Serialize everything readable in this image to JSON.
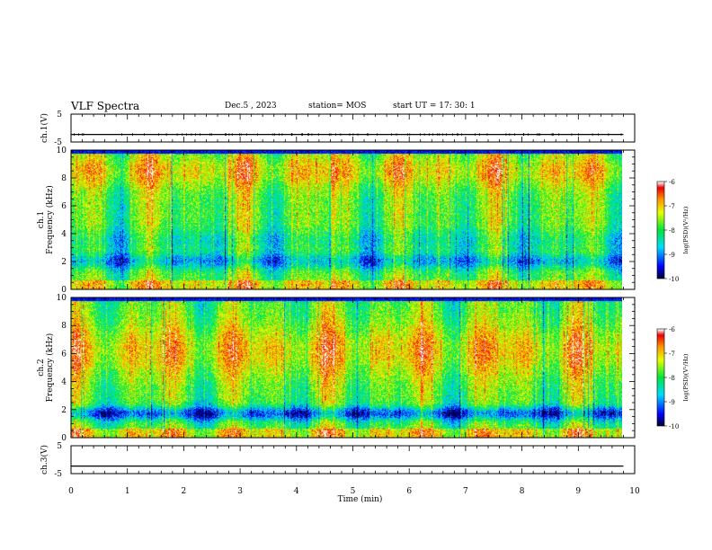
{
  "header": {
    "title": "VLF Spectra",
    "date": "Dec.5 , 2023",
    "station": "station= MOS",
    "start": "start UT = 17: 30: 1"
  },
  "chart_data": [
    {
      "type": "line",
      "panel": "ch1-voltage",
      "ylabel": "ch.1(V)",
      "ylim": [
        -5,
        5
      ],
      "yticks": [
        "5",
        "-5"
      ],
      "x": [
        0,
        9.8
      ],
      "values": [
        -2.3,
        -2.3
      ]
    },
    {
      "type": "heatmap",
      "panel": "ch1-spectrogram",
      "ylabel_line1": "ch.1",
      "ylabel_line2": "Frequency (kHz)",
      "ylim": [
        0,
        10
      ],
      "yticks": [
        "0",
        "2",
        "4",
        "6",
        "8",
        "10"
      ],
      "xlim": [
        0,
        9.8
      ],
      "colorbar": {
        "label": "log(PSD)(V²/Hz)",
        "range": [
          -10,
          -6
        ],
        "ticks": [
          "-6",
          "-7",
          "-8",
          "-9",
          "-10"
        ],
        "colors": [
          "#ffffff",
          "#ff0000",
          "#ffa500",
          "#ffff00",
          "#00ff00",
          "#00ffff",
          "#0000ff",
          "#000040"
        ]
      }
    },
    {
      "type": "heatmap",
      "panel": "ch2-spectrogram",
      "ylabel_line1": "ch.2",
      "ylabel_line2": "Frequency (kHz)",
      "ylim": [
        0,
        10
      ],
      "yticks": [
        "0",
        "2",
        "4",
        "6",
        "8",
        "10"
      ],
      "xlim": [
        0,
        9.8
      ],
      "colorbar": {
        "label": "log(PSD)(V²/Hz)",
        "range": [
          -10,
          -6
        ],
        "ticks": [
          "-6",
          "-7",
          "-8",
          "-9",
          "-10"
        ],
        "colors": [
          "#ffffff",
          "#ff0000",
          "#ffa500",
          "#ffff00",
          "#00ff00",
          "#00ffff",
          "#0000ff",
          "#000040"
        ]
      }
    },
    {
      "type": "line",
      "panel": "ch3-voltage",
      "ylabel": "ch.3(V)",
      "ylim": [
        -5,
        5
      ],
      "yticks": [
        "5",
        "-5"
      ],
      "x": [
        0,
        9.8
      ],
      "values": [
        -2.3,
        -2.3
      ]
    }
  ],
  "xaxis": {
    "label": "Time (min)",
    "range": [
      0,
      10
    ],
    "ticks": [
      "0",
      "1",
      "2",
      "3",
      "4",
      "5",
      "6",
      "7",
      "8",
      "9",
      "10"
    ]
  }
}
